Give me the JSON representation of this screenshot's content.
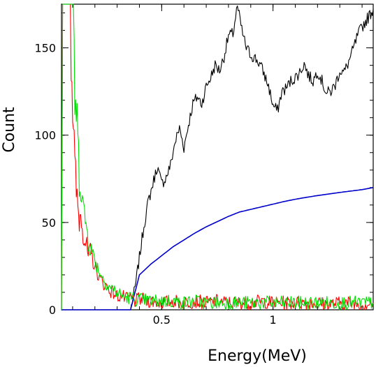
{
  "chart_data": {
    "type": "line",
    "title": "",
    "xlabel": "Energy(MeV)",
    "ylabel": "Count",
    "xlim": [
      0.05,
      1.45
    ],
    "ylim": [
      0,
      175
    ],
    "xticks": [
      {
        "value": 0.5,
        "label": "0.5"
      },
      {
        "value": 1,
        "label": "1"
      }
    ],
    "yticks": [
      {
        "value": 0,
        "label": "0"
      },
      {
        "value": 50,
        "label": "50"
      },
      {
        "value": 100,
        "label": "100"
      },
      {
        "value": 150,
        "label": "150"
      }
    ],
    "grid": false,
    "legend": "none",
    "series": [
      {
        "color": "#000000",
        "x": [
          0.36,
          0.38,
          0.4,
          0.42,
          0.44,
          0.46,
          0.48,
          0.5,
          0.52,
          0.54,
          0.56,
          0.58,
          0.6,
          0.62,
          0.64,
          0.66,
          0.68,
          0.7,
          0.72,
          0.74,
          0.76,
          0.78,
          0.8,
          0.82,
          0.84,
          0.86,
          0.88,
          0.9,
          0.92,
          0.94,
          0.96,
          0.98,
          1.0,
          1.02,
          1.04,
          1.06,
          1.08,
          1.1,
          1.12,
          1.14,
          1.16,
          1.18,
          1.2,
          1.22,
          1.24,
          1.26,
          1.28,
          1.3,
          1.32,
          1.34,
          1.36,
          1.38,
          1.4,
          1.42,
          1.45
        ],
        "values": [
          0,
          12,
          30,
          48,
          62,
          72,
          82,
          72,
          76,
          83,
          96,
          104,
          93,
          106,
          118,
          122,
          118,
          128,
          133,
          140,
          137,
          145,
          157,
          158,
          174,
          160,
          150,
          146,
          144,
          141,
          135,
          128,
          117,
          114,
          125,
          127,
          131,
          133,
          136,
          141,
          134,
          131,
          137,
          131,
          124,
          125,
          129,
          137,
          136,
          142,
          149,
          157,
          162,
          166,
          172
        ]
      },
      {
        "color": "#0000cc",
        "x": [
          0.05,
          0.36,
          0.38,
          0.4,
          0.45,
          0.5,
          0.55,
          0.6,
          0.65,
          0.7,
          0.75,
          0.8,
          0.85,
          0.9,
          0.95,
          1.0,
          1.05,
          1.1,
          1.15,
          1.2,
          1.25,
          1.3,
          1.35,
          1.4,
          1.45
        ],
        "values": [
          0,
          0,
          10,
          20,
          26,
          31,
          36,
          40,
          44,
          47.5,
          50.5,
          53.5,
          56,
          57.5,
          59,
          60.5,
          62,
          63.3,
          64.4,
          65.4,
          66.3,
          67.2,
          68,
          68.8,
          70
        ]
      },
      {
        "color": "#ff0000",
        "x": [
          0.05,
          0.055,
          0.06,
          0.07,
          0.08,
          0.09,
          0.1,
          0.11,
          0.12,
          0.13,
          0.14,
          0.15,
          0.16,
          0.17,
          0.18,
          0.2,
          0.22,
          0.24,
          0.26,
          0.28,
          0.3,
          0.32,
          0.34,
          0.36,
          0.38,
          0.4,
          0.45,
          0.5,
          0.55,
          0.6,
          0.65,
          0.7,
          0.75,
          0.8,
          0.85,
          0.9,
          0.95,
          1.0,
          1.05,
          1.1,
          1.15,
          1.2,
          1.25,
          1.3,
          1.35,
          1.4,
          1.45
        ],
        "values": [
          0,
          175,
          175,
          175,
          175,
          175,
          120,
          80,
          62,
          52,
          55,
          42,
          38,
          30,
          33,
          25,
          18,
          15,
          12,
          10,
          8,
          8,
          6,
          7,
          5,
          6,
          5,
          4,
          5,
          4,
          5,
          4,
          5,
          4,
          4,
          4,
          5,
          4,
          4,
          4,
          4,
          4,
          3,
          4,
          4,
          3,
          4
        ]
      },
      {
        "color": "#00e000",
        "x": [
          0.05,
          0.055,
          0.06,
          0.07,
          0.08,
          0.09,
          0.1,
          0.11,
          0.12,
          0.13,
          0.14,
          0.15,
          0.16,
          0.17,
          0.18,
          0.2,
          0.22,
          0.24,
          0.26,
          0.28,
          0.3,
          0.32,
          0.34,
          0.36,
          0.38,
          0.4,
          0.45,
          0.5,
          0.55,
          0.6,
          0.65,
          0.7,
          0.75,
          0.8,
          0.85,
          0.9,
          0.95,
          1.0,
          1.05,
          1.1,
          1.15,
          1.2,
          1.25,
          1.3,
          1.35,
          1.4,
          1.45
        ],
        "values": [
          0,
          175,
          175,
          175,
          175,
          175,
          175,
          125,
          105,
          78,
          72,
          55,
          50,
          40,
          36,
          28,
          22,
          17,
          14,
          12,
          10,
          8,
          7,
          7,
          6,
          6,
          5,
          5,
          5,
          4,
          5,
          4,
          4,
          4,
          4,
          4,
          4,
          4,
          4,
          4,
          4,
          4,
          4,
          4,
          4,
          4,
          4
        ]
      }
    ]
  }
}
